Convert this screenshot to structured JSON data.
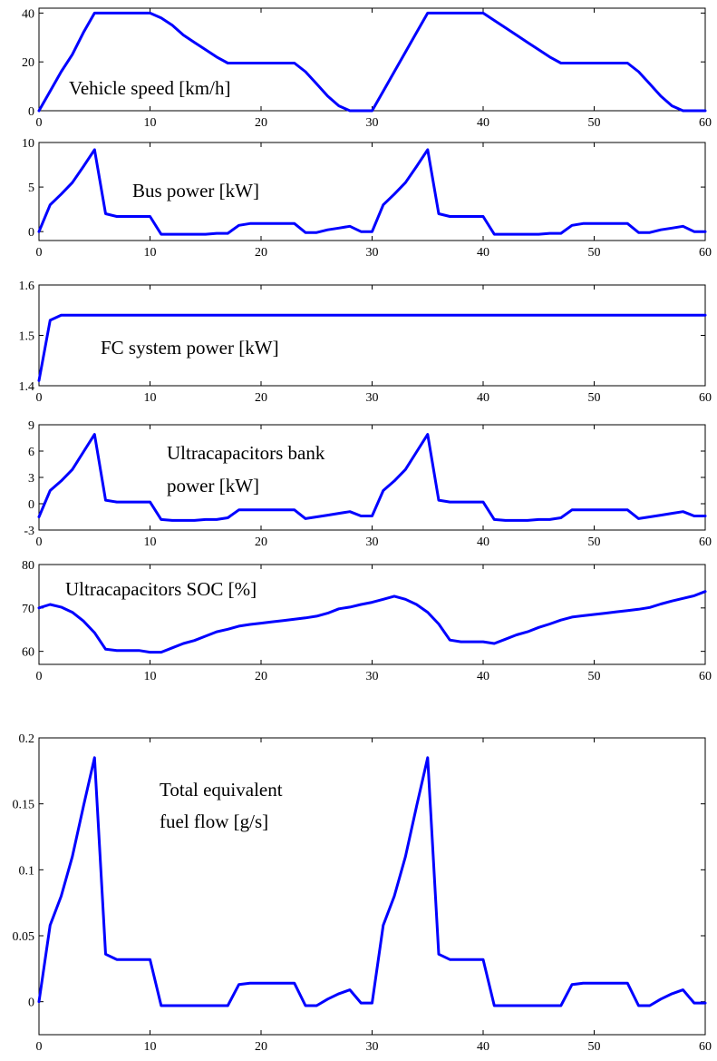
{
  "colors": {
    "series": "#0000ff",
    "axes": "#000000",
    "background": "#ffffff"
  },
  "chart_data": [
    {
      "type": "line",
      "annotation": [
        "Vehicle speed [km/h]"
      ],
      "xlim": [
        0,
        60
      ],
      "ylim": [
        0,
        42
      ],
      "xticks": [
        0,
        10,
        20,
        30,
        40,
        50,
        60
      ],
      "yticks": [
        0,
        20,
        40
      ],
      "grid": false,
      "series": [
        {
          "x": [
            0,
            1,
            2,
            3,
            4,
            5,
            6,
            7,
            8,
            9,
            10,
            11,
            12,
            13,
            14,
            15,
            16,
            17,
            18,
            19,
            20,
            21,
            22,
            23,
            24,
            25,
            26,
            27,
            28,
            29,
            30,
            31,
            32,
            33,
            34,
            35,
            36,
            37,
            38,
            39,
            40,
            41,
            42,
            43,
            44,
            45,
            46,
            47,
            48,
            49,
            50,
            51,
            52,
            53,
            54,
            55,
            56,
            57,
            58,
            59,
            60
          ],
          "y": [
            0,
            8,
            16,
            23,
            32,
            40,
            40,
            40,
            40,
            40,
            40,
            38,
            35,
            31,
            28,
            25,
            22,
            19.5,
            19.5,
            19.5,
            19.5,
            19.5,
            19.5,
            19.5,
            16,
            11,
            6,
            2,
            0,
            0,
            0,
            8,
            16,
            24,
            32,
            40,
            40,
            40,
            40,
            40,
            40,
            37,
            34,
            31,
            28,
            25,
            22,
            19.5,
            19.5,
            19.5,
            19.5,
            19.5,
            19.5,
            19.5,
            16,
            11,
            6,
            2,
            0,
            0,
            0
          ]
        }
      ]
    },
    {
      "type": "line",
      "annotation": [
        "Bus power [kW]"
      ],
      "xlim": [
        0,
        60
      ],
      "ylim": [
        -1,
        10
      ],
      "xticks": [
        0,
        10,
        20,
        30,
        40,
        50,
        60
      ],
      "yticks": [
        0,
        5,
        10
      ],
      "grid": false,
      "series": [
        {
          "x": [
            0,
            1,
            2,
            3,
            4,
            5,
            6,
            7,
            8,
            9,
            10,
            11,
            12,
            13,
            14,
            15,
            16,
            17,
            18,
            19,
            20,
            21,
            22,
            23,
            24,
            25,
            26,
            27,
            28,
            29,
            30,
            31,
            32,
            33,
            34,
            35,
            36,
            37,
            38,
            39,
            40,
            41,
            42,
            43,
            44,
            45,
            46,
            47,
            48,
            49,
            50,
            51,
            52,
            53,
            54,
            55,
            56,
            57,
            58,
            59,
            60
          ],
          "y": [
            0,
            3,
            4.2,
            5.5,
            7.3,
            9.2,
            2,
            1.7,
            1.7,
            1.7,
            1.7,
            -0.3,
            -0.3,
            -0.3,
            -0.3,
            -0.3,
            -0.2,
            -0.2,
            0.7,
            0.9,
            0.9,
            0.9,
            0.9,
            0.9,
            -0.1,
            -0.1,
            0.2,
            0.4,
            0.6,
            0,
            0,
            3,
            4.2,
            5.5,
            7.3,
            9.2,
            2,
            1.7,
            1.7,
            1.7,
            1.7,
            -0.3,
            -0.3,
            -0.3,
            -0.3,
            -0.3,
            -0.2,
            -0.2,
            0.7,
            0.9,
            0.9,
            0.9,
            0.9,
            0.9,
            -0.1,
            -0.1,
            0.2,
            0.4,
            0.6,
            0,
            0
          ]
        }
      ]
    },
    {
      "type": "line",
      "annotation": [
        "FC system power [kW]"
      ],
      "xlim": [
        0,
        60
      ],
      "ylim": [
        1.4,
        1.6
      ],
      "xticks": [
        0,
        10,
        20,
        30,
        40,
        50,
        60
      ],
      "yticks": [
        1.4,
        1.5,
        1.6
      ],
      "grid": false,
      "series": [
        {
          "x": [
            0,
            1,
            2,
            60
          ],
          "y": [
            1.41,
            1.53,
            1.54,
            1.54
          ]
        }
      ]
    },
    {
      "type": "line",
      "annotation": [
        "Ultracapacitors bank",
        "power [kW]"
      ],
      "xlim": [
        0,
        60
      ],
      "ylim": [
        -3,
        9
      ],
      "xticks": [
        0,
        10,
        20,
        30,
        40,
        50,
        60
      ],
      "yticks": [
        -3,
        0,
        3,
        6,
        9
      ],
      "grid": false,
      "series": [
        {
          "x": [
            0,
            1,
            2,
            3,
            4,
            5,
            6,
            7,
            8,
            9,
            10,
            11,
            12,
            13,
            14,
            15,
            16,
            17,
            18,
            19,
            20,
            21,
            22,
            23,
            24,
            25,
            26,
            27,
            28,
            29,
            30,
            31,
            32,
            33,
            34,
            35,
            36,
            37,
            38,
            39,
            40,
            41,
            42,
            43,
            44,
            45,
            46,
            47,
            48,
            49,
            50,
            51,
            52,
            53,
            54,
            55,
            56,
            57,
            58,
            59,
            60
          ],
          "y": [
            -1.5,
            1.5,
            2.6,
            3.9,
            5.9,
            7.9,
            0.4,
            0.2,
            0.2,
            0.2,
            0.2,
            -1.8,
            -1.9,
            -1.9,
            -1.9,
            -1.8,
            -1.8,
            -1.6,
            -0.7,
            -0.7,
            -0.7,
            -0.7,
            -0.7,
            -0.7,
            -1.7,
            -1.5,
            -1.3,
            -1.1,
            -0.9,
            -1.4,
            -1.4,
            1.5,
            2.6,
            3.9,
            5.9,
            7.9,
            0.4,
            0.2,
            0.2,
            0.2,
            0.2,
            -1.8,
            -1.9,
            -1.9,
            -1.9,
            -1.8,
            -1.8,
            -1.6,
            -0.7,
            -0.7,
            -0.7,
            -0.7,
            -0.7,
            -0.7,
            -1.7,
            -1.5,
            -1.3,
            -1.1,
            -0.9,
            -1.4,
            -1.4
          ]
        }
      ]
    },
    {
      "type": "line",
      "annotation": [
        "Ultracapacitors SOC [%]"
      ],
      "xlim": [
        0,
        60
      ],
      "ylim": [
        57,
        80
      ],
      "xticks": [
        0,
        10,
        20,
        30,
        40,
        50,
        60
      ],
      "yticks": [
        60,
        70,
        80
      ],
      "grid": false,
      "series": [
        {
          "x": [
            0,
            1,
            2,
            3,
            4,
            5,
            6,
            7,
            8,
            9,
            10,
            11,
            12,
            13,
            14,
            15,
            16,
            17,
            18,
            19,
            20,
            21,
            22,
            23,
            24,
            25,
            26,
            27,
            28,
            29,
            30,
            31,
            32,
            33,
            34,
            35,
            36,
            37,
            38,
            39,
            40,
            41,
            42,
            43,
            44,
            45,
            46,
            47,
            48,
            49,
            50,
            51,
            52,
            53,
            54,
            55,
            56,
            57,
            58,
            59,
            60
          ],
          "y": [
            70,
            70.8,
            70.2,
            69,
            67,
            64.3,
            60.5,
            60.2,
            60.2,
            60.2,
            59.8,
            59.8,
            60.8,
            61.8,
            62.5,
            63.5,
            64.5,
            65.1,
            65.8,
            66.2,
            66.5,
            66.8,
            67.1,
            67.4,
            67.7,
            68.1,
            68.8,
            69.8,
            70.2,
            70.8,
            71.3,
            72,
            72.7,
            72,
            70.8,
            69,
            66.3,
            62.6,
            62.2,
            62.2,
            62.2,
            61.8,
            62.8,
            63.8,
            64.5,
            65.5,
            66.3,
            67.2,
            67.9,
            68.2,
            68.5,
            68.8,
            69.1,
            69.4,
            69.7,
            70.1,
            70.9,
            71.6,
            72.2,
            72.8,
            73.8
          ]
        }
      ]
    },
    {
      "type": "line",
      "annotation": [
        "Total equivalent",
        "fuel flow [g/s]"
      ],
      "xlim": [
        0,
        60
      ],
      "ylim": [
        -0.025,
        0.2
      ],
      "xticks": [
        0,
        10,
        20,
        30,
        40,
        50,
        60
      ],
      "yticks": [
        0,
        0.05,
        0.1,
        0.15,
        0.2
      ],
      "grid": false,
      "series": [
        {
          "x": [
            0,
            1,
            2,
            3,
            4,
            5,
            6,
            7,
            8,
            9,
            10,
            11,
            12,
            13,
            14,
            15,
            16,
            17,
            18,
            19,
            20,
            21,
            22,
            23,
            24,
            25,
            26,
            27,
            28,
            29,
            30,
            31,
            32,
            33,
            34,
            35,
            36,
            37,
            38,
            39,
            40,
            41,
            42,
            43,
            44,
            45,
            46,
            47,
            48,
            49,
            50,
            51,
            52,
            53,
            54,
            55,
            56,
            57,
            58,
            59,
            60
          ],
          "y": [
            0,
            0.058,
            0.08,
            0.11,
            0.148,
            0.185,
            0.036,
            0.032,
            0.032,
            0.032,
            0.032,
            -0.003,
            -0.003,
            -0.003,
            -0.003,
            -0.003,
            -0.003,
            -0.003,
            0.013,
            0.014,
            0.014,
            0.014,
            0.014,
            0.014,
            -0.003,
            -0.003,
            0.002,
            0.006,
            0.009,
            -0.001,
            -0.001,
            0.058,
            0.08,
            0.11,
            0.148,
            0.185,
            0.036,
            0.032,
            0.032,
            0.032,
            0.032,
            -0.003,
            -0.003,
            -0.003,
            -0.003,
            -0.003,
            -0.003,
            -0.003,
            0.013,
            0.014,
            0.014,
            0.014,
            0.014,
            0.014,
            -0.003,
            -0.003,
            0.002,
            0.006,
            0.009,
            -0.001,
            -0.001
          ]
        }
      ]
    }
  ]
}
